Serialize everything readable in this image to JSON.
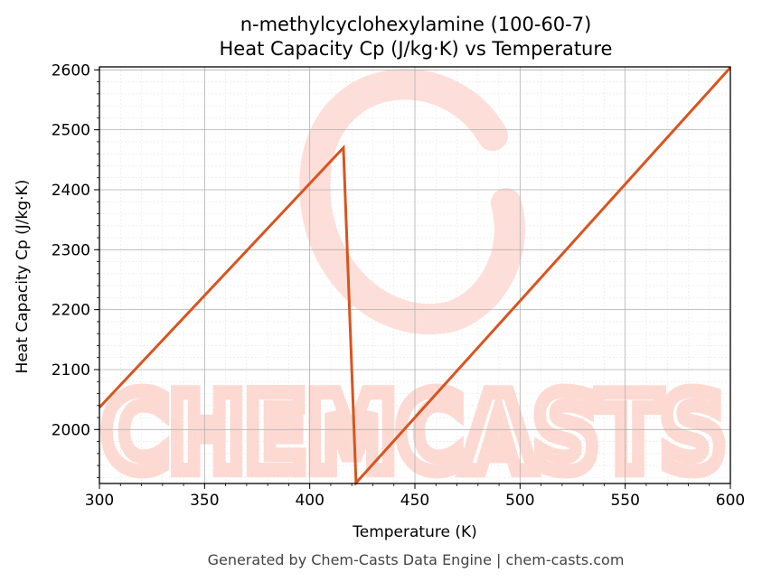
{
  "chart_data": {
    "type": "line",
    "title": "n-methylcyclohexylamine (100-60-7)",
    "subtitle": "Heat Capacity Cp (J/kg·K) vs Temperature",
    "xlabel": "Temperature (K)",
    "ylabel": "Heat Capacity Cp (J/kg·K)",
    "xlim": [
      300,
      600
    ],
    "ylim": [
      1910,
      2605
    ],
    "x_ticks": [
      300,
      350,
      400,
      450,
      500,
      550,
      600
    ],
    "y_ticks": [
      2000,
      2100,
      2200,
      2300,
      2400,
      2500,
      2600
    ],
    "grid": true,
    "series_color": "#d9541e",
    "series": [
      {
        "x": [
          300,
          416,
          422,
          600
        ],
        "y": [
          2037,
          2470,
          1911,
          2604
        ]
      }
    ]
  },
  "watermark": {
    "text": "CHEMCASTS",
    "color": "#fdd3cb"
  },
  "footer": "Generated by Chem-Casts Data Engine | chem-casts.com"
}
